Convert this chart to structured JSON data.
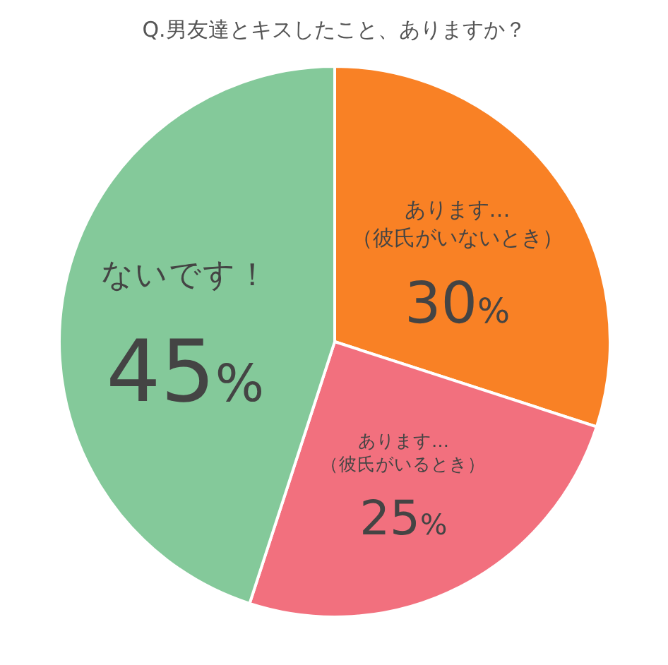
{
  "chart_data": {
    "type": "pie",
    "title": "Q.男友達とキスしたこと、ありますか？",
    "categories": [
      "あります…（彼氏がいないとき）",
      "あります…（彼氏がいるとき）",
      "ないです！"
    ],
    "values": [
      30,
      25,
      45
    ],
    "colors": [
      "#f98125",
      "#f2707e",
      "#84c99a"
    ],
    "value_labels": [
      "30%",
      "25%",
      "45%"
    ]
  }
}
